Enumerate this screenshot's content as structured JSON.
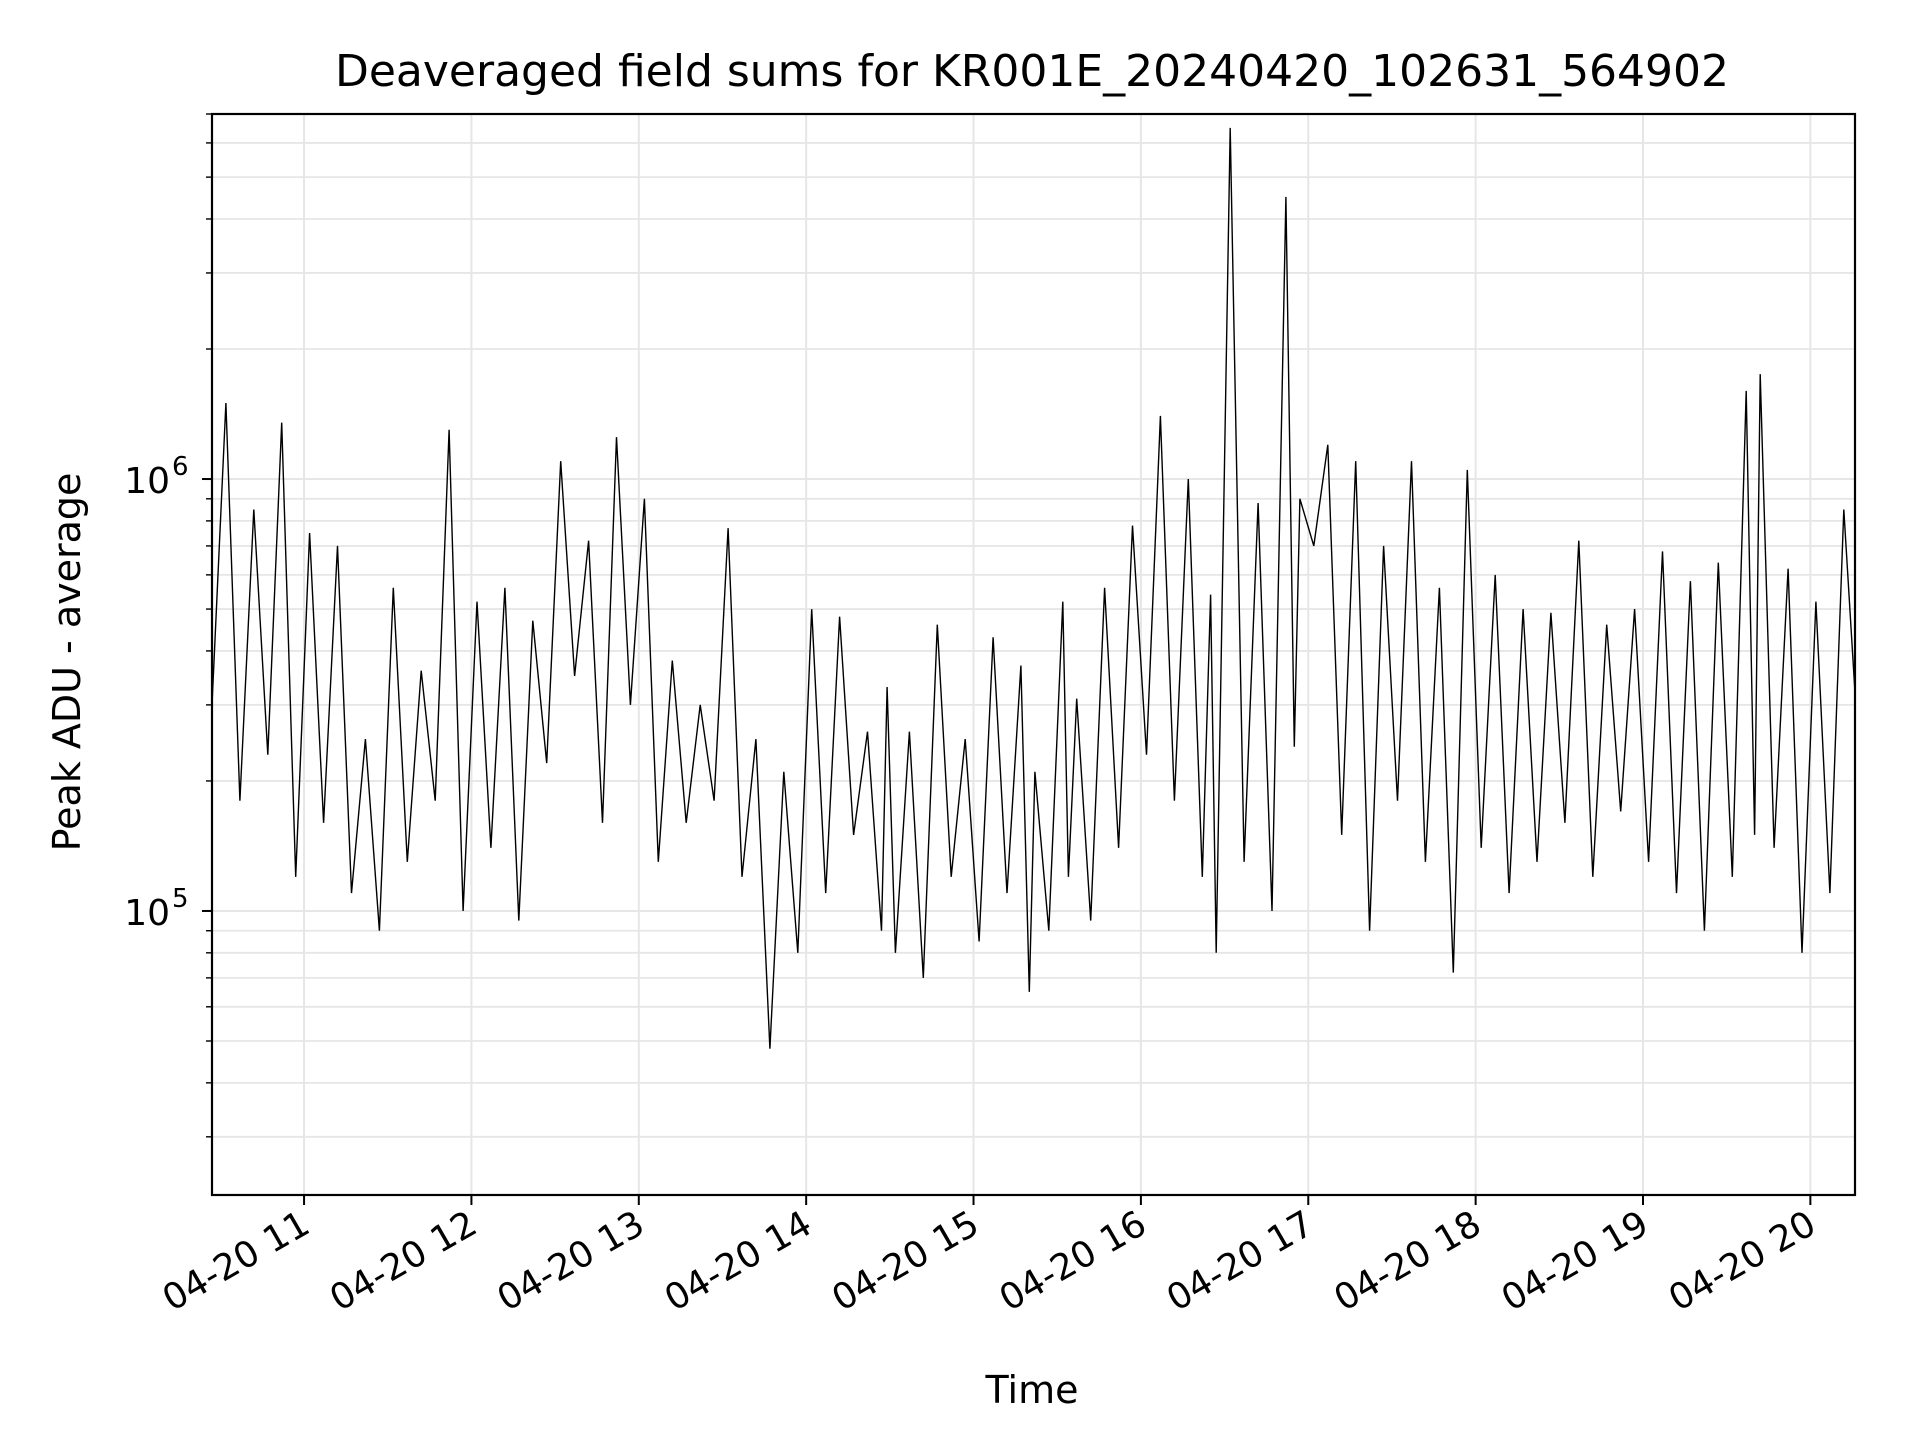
{
  "chart_data": {
    "type": "line",
    "title": "Deaveraged field sums for KR001E_20240420_102631_564902",
    "xlabel": "Time",
    "ylabel": "Peak ADU - average",
    "x_scale": "time",
    "y_scale": "log",
    "xlim": [
      "2024-04-20 10:27",
      "2024-04-20 20:16"
    ],
    "ylim": [
      22000,
      7000000
    ],
    "x_ticks": [
      "04-20 11",
      "04-20 12",
      "04-20 13",
      "04-20 14",
      "04-20 15",
      "04-20 16",
      "04-20 17",
      "04-20 18",
      "04-20 19",
      "04-20 20"
    ],
    "y_ticks": [
      {
        "base": "10",
        "exp": "5",
        "value": 100000
      },
      {
        "base": "10",
        "exp": "6",
        "value": 1000000
      }
    ],
    "grid": true,
    "line_color": "#000000",
    "grid_color": "#e6e6e6",
    "series": [
      {
        "x": [
          "10:27",
          "10:32",
          "10:37",
          "10:42",
          "10:47",
          "10:52",
          "10:57",
          "11:02",
          "11:07",
          "11:12",
          "11:17",
          "11:22",
          "11:27",
          "11:32",
          "11:37",
          "11:42",
          "11:47",
          "11:52",
          "11:57",
          "12:02",
          "12:07",
          "12:12",
          "12:17",
          "12:22",
          "12:27",
          "12:32",
          "12:37",
          "12:42",
          "12:47",
          "12:52",
          "12:57",
          "13:02",
          "13:07",
          "13:12",
          "13:17",
          "13:22",
          "13:27",
          "13:32",
          "13:37",
          "13:42",
          "13:47",
          "13:52",
          "13:57",
          "14:02",
          "14:07",
          "14:12",
          "14:17",
          "14:22",
          "14:27",
          "14:29",
          "14:32",
          "14:37",
          "14:42",
          "14:47",
          "14:52",
          "14:57",
          "15:02",
          "15:07",
          "15:12",
          "15:17",
          "15:20",
          "15:22",
          "15:27",
          "15:32",
          "15:34",
          "15:37",
          "15:42",
          "15:47",
          "15:52",
          "15:57",
          "16:02",
          "16:07",
          "16:12",
          "16:17",
          "16:22",
          "16:25",
          "16:27",
          "16:32",
          "16:37",
          "16:42",
          "16:47",
          "16:52",
          "16:55",
          "16:57",
          "17:02",
          "17:07",
          "17:12",
          "17:17",
          "17:22",
          "17:27",
          "17:32",
          "17:37",
          "17:42",
          "17:47",
          "17:52",
          "17:57",
          "18:02",
          "18:07",
          "18:12",
          "18:17",
          "18:22",
          "18:27",
          "18:32",
          "18:37",
          "18:42",
          "18:47",
          "18:52",
          "18:57",
          "19:02",
          "19:07",
          "19:12",
          "19:17",
          "19:22",
          "19:27",
          "19:32",
          "19:37",
          "19:40",
          "19:42",
          "19:47",
          "19:52",
          "19:57",
          "20:02",
          "20:07",
          "20:12",
          "20:16"
        ],
        "y": [
          300000,
          1500000,
          180000,
          850000,
          230000,
          1350000,
          120000,
          750000,
          160000,
          700000,
          110000,
          250000,
          90000,
          560000,
          130000,
          360000,
          180000,
          1300000,
          100000,
          520000,
          140000,
          560000,
          95000,
          470000,
          220000,
          1100000,
          350000,
          720000,
          160000,
          1250000,
          300000,
          900000,
          130000,
          380000,
          160000,
          300000,
          180000,
          770000,
          120000,
          250000,
          48000,
          210000,
          80000,
          500000,
          110000,
          480000,
          150000,
          260000,
          90000,
          330000,
          80000,
          260000,
          70000,
          460000,
          120000,
          250000,
          85000,
          430000,
          110000,
          370000,
          65000,
          210000,
          90000,
          520000,
          120000,
          310000,
          95000,
          560000,
          140000,
          780000,
          230000,
          1400000,
          180000,
          1000000,
          120000,
          540000,
          80000,
          6500000,
          130000,
          880000,
          100000,
          4500000,
          240000,
          900000,
          700000,
          1200000,
          150000,
          1100000,
          90000,
          700000,
          180000,
          1100000,
          130000,
          560000,
          72000,
          1050000,
          140000,
          600000,
          110000,
          500000,
          130000,
          490000,
          160000,
          720000,
          120000,
          460000,
          170000,
          500000,
          130000,
          680000,
          110000,
          580000,
          90000,
          640000,
          120000,
          1600000,
          150000,
          1750000,
          140000,
          620000,
          80000,
          520000,
          110000,
          850000,
          320000
        ]
      }
    ]
  }
}
